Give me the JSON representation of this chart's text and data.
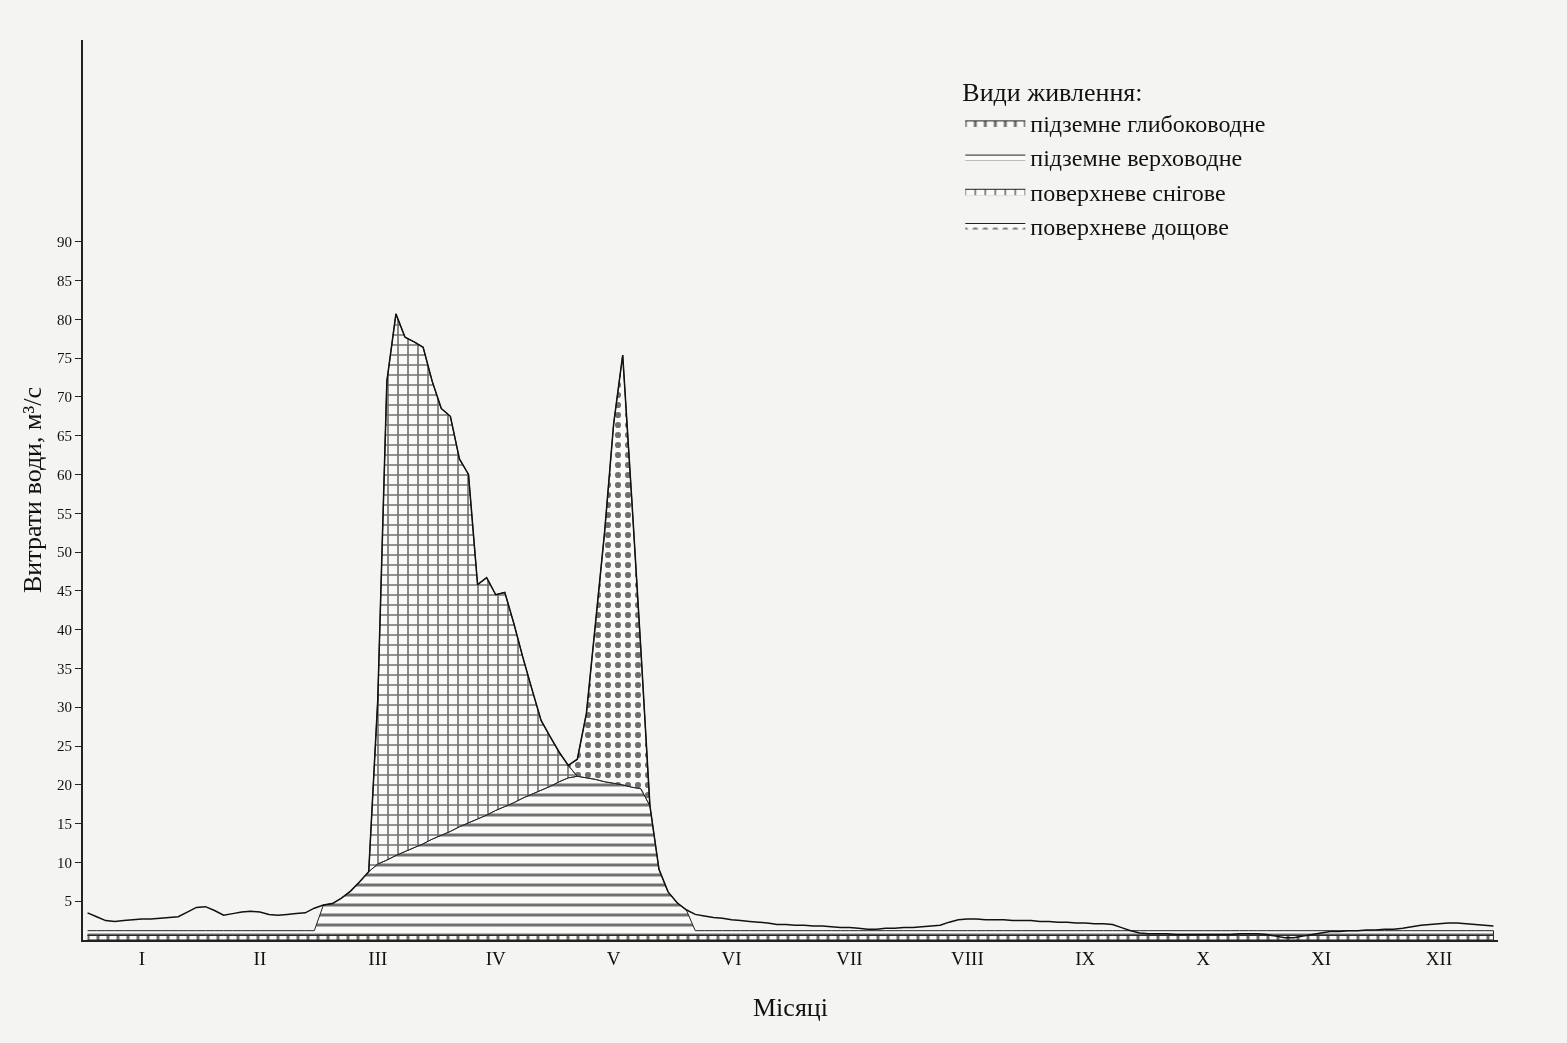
{
  "chart_data": {
    "type": "area",
    "stacked": true,
    "xlabel": "Місяці",
    "ylabel": "Витрати води, м³/с",
    "legend_title": "Види живлення:",
    "legend": "top right",
    "grid": false,
    "categories": [
      null,
      null,
      null,
      null,
      null,
      null,
      "I",
      null,
      null,
      null,
      null,
      null,
      null,
      null,
      null,
      null,
      null,
      null,
      null,
      "II",
      null,
      null,
      null,
      null,
      null,
      null,
      null,
      null,
      null,
      null,
      null,
      null,
      "III",
      null,
      null,
      null,
      null,
      null,
      null,
      null,
      null,
      null,
      null,
      null,
      null,
      "IV",
      null,
      null,
      null,
      null,
      null,
      null,
      null,
      null,
      null,
      null,
      null,
      null,
      "V",
      null,
      null,
      null,
      null,
      null,
      null,
      null,
      null,
      null,
      null,
      null,
      null,
      "VI",
      null,
      null,
      null,
      null,
      null,
      null,
      null,
      null,
      null,
      null,
      null,
      null,
      "VII",
      null,
      null,
      null,
      null,
      null,
      null,
      null,
      null,
      null,
      null,
      null,
      null,
      "VIII",
      null,
      null,
      null,
      null,
      null,
      null,
      null,
      null,
      null,
      null,
      null,
      null,
      "IX",
      null,
      null,
      null,
      null,
      null,
      null,
      null,
      null,
      null,
      null,
      null,
      null,
      "X",
      null,
      null,
      null,
      null,
      null,
      null,
      null,
      null,
      null,
      null,
      null,
      null,
      "XI",
      null,
      null,
      null,
      null,
      null,
      null,
      null,
      null,
      null,
      null,
      null,
      null,
      "XII",
      null,
      null,
      null,
      null,
      null,
      null
    ],
    "ylim": [
      0,
      116
    ],
    "yticks": [
      5,
      10,
      15,
      20,
      25,
      30,
      35,
      40,
      45,
      50,
      55,
      60,
      65,
      70,
      75,
      80,
      85,
      90
    ],
    "series": [
      {
        "name": "підземне глибоководне",
        "color": "#707070",
        "values": [
          0.6,
          0.6,
          0.6,
          0.6,
          0.6,
          0.6,
          0.6,
          0.6,
          0.6,
          0.6,
          0.6,
          0.6,
          0.6,
          0.6,
          0.6,
          0.6,
          0.6,
          0.6,
          0.6,
          0.6,
          0.6,
          0.6,
          0.6,
          0.6,
          0.6,
          0.6,
          0.6,
          0.6,
          0.6,
          0.6,
          0.6,
          0.6,
          0.6,
          0.6,
          0.6,
          0.6,
          0.6,
          0.6,
          0.6,
          0.6,
          0.6,
          0.6,
          0.6,
          0.6,
          0.6,
          0.6,
          0.6,
          0.6,
          0.6,
          0.6,
          0.6,
          0.6,
          0.6,
          0.6,
          0.6,
          0.6,
          0.6,
          0.6,
          0.6,
          0.6,
          0.6,
          0.6,
          0.6,
          0.6,
          0.6,
          0.6,
          0.6,
          0.6,
          0.6,
          0.6,
          0.6,
          0.6,
          0.6,
          0.6,
          0.6,
          0.6,
          0.6,
          0.6,
          0.6,
          0.6,
          0.6,
          0.6,
          0.6,
          0.6,
          0.6,
          0.6,
          0.6,
          0.6,
          0.6,
          0.6,
          0.6,
          0.6,
          0.6,
          0.6,
          0.6,
          0.6,
          0.6,
          0.6,
          0.6,
          0.6,
          0.6,
          0.6,
          0.6,
          0.6,
          0.6,
          0.6,
          0.6,
          0.6,
          0.6,
          0.6,
          0.6,
          0.6,
          0.6,
          0.6,
          0.6,
          0.6,
          0.6,
          0.6,
          0.6,
          0.6,
          0.6,
          0.6,
          0.6,
          0.6,
          0.6,
          0.6,
          0.6,
          0.6,
          0.6,
          0.6,
          0.6,
          0.6,
          0.6,
          0.6,
          0.6,
          0.6,
          0.6,
          0.6,
          0.6,
          0.6,
          0.6,
          0.6,
          0.6,
          0.6,
          0.6,
          0.6,
          0.6,
          0.6,
          0.6,
          0.6,
          0.6,
          0.6,
          0.6,
          0.6,
          0.6,
          0.6
        ]
      },
      {
        "name": "підземне верховодне",
        "color": "#707070",
        "values": [
          0.6,
          0.6,
          0.6,
          0.6,
          0.6,
          0.6,
          0.6,
          0.6,
          0.6,
          0.6,
          0.6,
          0.6,
          0.6,
          0.6,
          0.6,
          0.6,
          0.6,
          0.6,
          0.6,
          0.6,
          0.6,
          0.6,
          0.6,
          0.6,
          0.6,
          0.6,
          3.9,
          4.1,
          4.8,
          5.7,
          6.9,
          8.2,
          9.2,
          9.7,
          10.3,
          10.8,
          11.3,
          11.8,
          12.4,
          12.9,
          13.4,
          14.0,
          14.5,
          15.0,
          15.5,
          16.1,
          16.6,
          17.1,
          17.7,
          18.2,
          18.7,
          19.2,
          19.8,
          20.3,
          20.5,
          20.3,
          20.1,
          19.8,
          19.6,
          19.4,
          19.1,
          18.9,
          16.7,
          8.5,
          5.6,
          4.2,
          3.3,
          0.6,
          0.6,
          0.6,
          0.6,
          0.6,
          0.6,
          0.6,
          0.6,
          0.6,
          0.6,
          0.6,
          0.6,
          0.6,
          0.6,
          0.6,
          0.6,
          0.6,
          0.6,
          0.6,
          0.6,
          0.6,
          0.6,
          0.6,
          0.6,
          0.6,
          0.6,
          0.6,
          0.6,
          0.6,
          0.6,
          0.6,
          0.6,
          0.6,
          0.6,
          0.6,
          0.6,
          0.6,
          0.6,
          0.6,
          0.6,
          0.6,
          0.6,
          0.6,
          0.6,
          0.6,
          0.6,
          0.6,
          0.6,
          0.6,
          0.6,
          0.6,
          0.6,
          0.6,
          0.6,
          0.6,
          0.6,
          0.6,
          0.6,
          0.6,
          0.6,
          0.6,
          0.6,
          0.6,
          0.6,
          0.6,
          0.6,
          0.6,
          0.6,
          0.6,
          0.6,
          0.6,
          0.6,
          0.6,
          0.6,
          0.6,
          0.6,
          0.6,
          0.6,
          0.6,
          0.6,
          0.6,
          0.6,
          0.6,
          0.6,
          0.6,
          0.6,
          0.6,
          0.6,
          0.6
        ]
      },
      {
        "name": "поверхневе снігове",
        "color": "#707070",
        "values": [
          null,
          null,
          null,
          null,
          null,
          null,
          null,
          null,
          null,
          null,
          null,
          null,
          null,
          null,
          null,
          null,
          null,
          null,
          null,
          null,
          null,
          null,
          null,
          null,
          null,
          null,
          null,
          null,
          null,
          null,
          null,
          0,
          21.2,
          61.7,
          69.8,
          66.3,
          65.2,
          64.0,
          59.0,
          55.0,
          53.5,
          47.4,
          44.9,
          30.2,
          30.6,
          27.8,
          27.6,
          23.1,
          18.1,
          13.5,
          9.0,
          6.4,
          3.8,
          1.6,
          0,
          null,
          null,
          null,
          null,
          null,
          null,
          null,
          null,
          null,
          null,
          null,
          null,
          null,
          null,
          null,
          null,
          null,
          null,
          null,
          null,
          null,
          null,
          null,
          null,
          null,
          null,
          null,
          null,
          null,
          null,
          null,
          null,
          null,
          null,
          null,
          null,
          null,
          null,
          null,
          null,
          null,
          null,
          null,
          null,
          null,
          null,
          null,
          null,
          null,
          null,
          null,
          null,
          null,
          null,
          null,
          null,
          null,
          null,
          null,
          null,
          null,
          null,
          null,
          null,
          null,
          null,
          null,
          null,
          null,
          null,
          null,
          null,
          null,
          null,
          null,
          null,
          null,
          null,
          null,
          null,
          null,
          null,
          null,
          null,
          null,
          null,
          null,
          null,
          null,
          null,
          null,
          null,
          null,
          null,
          null,
          null,
          null,
          null,
          null,
          null,
          null
        ]
      },
      {
        "name": "поверхневе дощове",
        "color": "#707070",
        "values": [
          null,
          null,
          null,
          null,
          null,
          null,
          null,
          null,
          null,
          null,
          null,
          null,
          null,
          null,
          null,
          null,
          null,
          null,
          null,
          null,
          null,
          null,
          null,
          null,
          null,
          null,
          null,
          null,
          null,
          null,
          null,
          null,
          null,
          null,
          null,
          null,
          null,
          null,
          null,
          null,
          null,
          null,
          null,
          null,
          null,
          null,
          null,
          null,
          null,
          null,
          null,
          null,
          null,
          0,
          2.2,
          8.3,
          20.1,
          32.1,
          46.3,
          55.4,
          37.1,
          18.0,
          0,
          null,
          null,
          null,
          null,
          null,
          null,
          null,
          null,
          null,
          null,
          null,
          null,
          null,
          null,
          null,
          null,
          null,
          null,
          null,
          null,
          null,
          null,
          null,
          null,
          null,
          null,
          null,
          null,
          null,
          null,
          null,
          null,
          null,
          null,
          null,
          null,
          null,
          null,
          null,
          null,
          null,
          null,
          null,
          null,
          null,
          null,
          null,
          null,
          null,
          null,
          null,
          null,
          null,
          null,
          null,
          null,
          null,
          null,
          null,
          null,
          null,
          null,
          null,
          null,
          null,
          null,
          null,
          null,
          null,
          null,
          null,
          null,
          null,
          null,
          null,
          null,
          null,
          null,
          null,
          null,
          null,
          null,
          null,
          null,
          null,
          null,
          null,
          null,
          null,
          null,
          null,
          null,
          null
        ]
      },
      {
        "type": "line",
        "color": "#111111",
        "values": [
          3.5,
          3.0,
          2.5,
          2.4,
          2.5,
          2.6,
          2.7,
          2.7,
          2.8,
          2.9,
          3.0,
          3.6,
          4.2,
          4.3,
          3.8,
          3.2,
          3.4,
          3.6,
          3.7,
          3.6,
          3.3,
          3.2,
          3.3,
          3.4,
          3.5,
          4.1,
          4.5,
          4.7,
          5.4,
          6.3,
          7.5,
          8.8,
          31,
          72,
          80.7,
          77.7,
          77.1,
          76.4,
          72,
          68.5,
          67.5,
          62,
          60,
          45.8,
          46.7,
          44.5,
          44.8,
          40.8,
          36.4,
          32.3,
          28.3,
          26.2,
          24.2,
          22.5,
          23.3,
          29.2,
          40.8,
          52.5,
          66.5,
          75.4,
          56.8,
          37.5,
          17.3,
          9.1,
          6.2,
          4.8,
          3.9,
          3.3,
          3.1,
          2.9,
          2.8,
          2.6,
          2.5,
          2.4,
          2.3,
          2.2,
          2.0,
          2.0,
          1.9,
          1.9,
          1.8,
          1.8,
          1.7,
          1.6,
          1.6,
          1.5,
          1.4,
          1.4,
          1.5,
          1.5,
          1.6,
          1.6,
          1.7,
          1.8,
          1.9,
          2.3,
          2.6,
          2.7,
          2.7,
          2.6,
          2.6,
          2.6,
          2.5,
          2.5,
          2.5,
          2.4,
          2.4,
          2.3,
          2.3,
          2.2,
          2.2,
          2.1,
          2.1,
          2.0,
          1.6,
          1.2,
          0.9,
          0.8,
          0.8,
          0.8,
          0.7,
          0.7,
          0.7,
          0.7,
          0.7,
          0.7,
          0.7,
          0.8,
          0.8,
          0.8,
          0.7,
          0.5,
          0.3,
          0.3,
          0.5,
          0.7,
          0.9,
          1.1,
          1.1,
          1.2,
          1.2,
          1.3,
          1.3,
          1.4,
          1.4,
          1.5,
          1.7,
          1.9,
          2.0,
          2.1,
          2.2,
          2.2,
          2.1,
          2.0,
          1.9,
          1.8
        ]
      }
    ]
  }
}
